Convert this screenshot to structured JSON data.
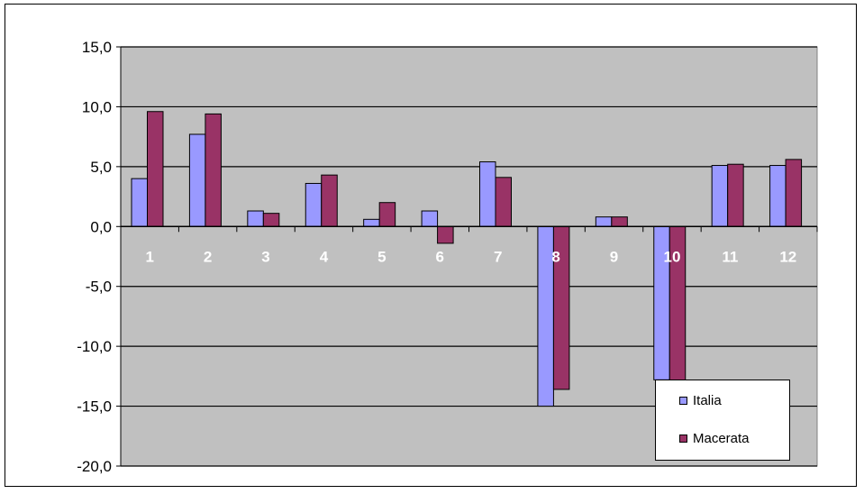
{
  "chart_data": {
    "type": "bar",
    "categories": [
      "1",
      "2",
      "3",
      "4",
      "5",
      "6",
      "7",
      "8",
      "9",
      "10",
      "11",
      "12"
    ],
    "series": [
      {
        "name": "Italia",
        "color": "#9999ff",
        "values": [
          4.0,
          7.7,
          1.3,
          3.6,
          0.6,
          1.3,
          5.4,
          -15.0,
          0.8,
          -12.8,
          5.1,
          5.1
        ]
      },
      {
        "name": "Macerata",
        "color": "#993366",
        "values": [
          9.6,
          9.4,
          1.1,
          4.3,
          2.0,
          -1.4,
          4.1,
          -13.6,
          0.8,
          -13.7,
          5.2,
          5.6
        ]
      }
    ],
    "ylim": [
      -20,
      15
    ],
    "yticks": [
      "15,0",
      "10,0",
      "5,0",
      "0,0",
      "-5,0",
      "-10,0",
      "-15,0",
      "-20,0"
    ],
    "ytick_values": [
      15,
      10,
      5,
      0,
      -5,
      -10,
      -15,
      -20
    ],
    "plot_background": "#c0c0c0",
    "grid": true,
    "legend_position": "bottom-right"
  }
}
